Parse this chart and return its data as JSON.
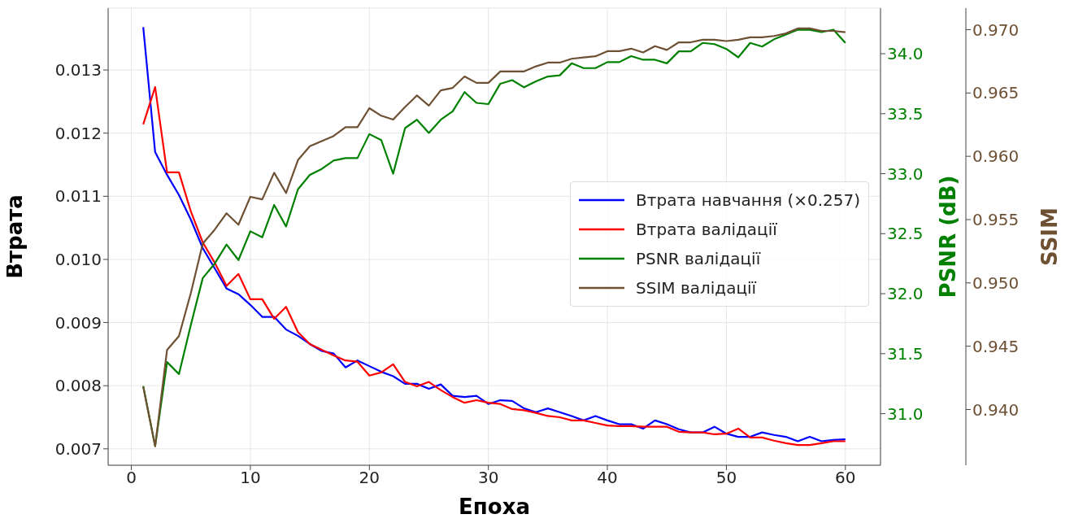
{
  "chart_data": {
    "type": "line",
    "xlabel": "Епоха",
    "ylabel": "Втрата",
    "y2label": "PSNR (dB)",
    "y3label": "SSIM",
    "x": [
      1,
      2,
      3,
      4,
      5,
      6,
      7,
      8,
      9,
      10,
      11,
      12,
      13,
      14,
      15,
      16,
      17,
      18,
      19,
      20,
      21,
      22,
      23,
      24,
      25,
      26,
      27,
      28,
      29,
      30,
      31,
      32,
      33,
      34,
      35,
      36,
      37,
      38,
      39,
      40,
      41,
      42,
      43,
      44,
      45,
      46,
      47,
      48,
      49,
      50,
      51,
      52,
      53,
      54,
      55,
      56,
      57,
      58,
      59,
      60
    ],
    "series": [
      {
        "name": "Втрата навчання (×0.257)",
        "color": "#0000ff",
        "values": [
          0.01368,
          0.0117,
          0.01134,
          0.01102,
          0.01063,
          0.01018,
          0.00986,
          0.00954,
          0.00945,
          0.00928,
          0.00909,
          0.00909,
          0.00889,
          0.00879,
          0.00866,
          0.00855,
          0.00851,
          0.00829,
          0.0084,
          0.00831,
          0.00822,
          0.00815,
          0.00803,
          0.00803,
          0.00795,
          0.00802,
          0.00784,
          0.00782,
          0.00784,
          0.00771,
          0.00777,
          0.00776,
          0.00764,
          0.00758,
          0.00764,
          0.00758,
          0.00752,
          0.00745,
          0.00752,
          0.00745,
          0.00739,
          0.00739,
          0.00732,
          0.00745,
          0.00739,
          0.00731,
          0.00726,
          0.00726,
          0.00735,
          0.00724,
          0.00719,
          0.00719,
          0.00726,
          0.00722,
          0.00719,
          0.00712,
          0.00719,
          0.00712,
          0.00714,
          0.00715
        ]
      },
      {
        "name": "Втрата валідації",
        "color": "#ff0000",
        "values": [
          0.01214,
          0.01273,
          0.01138,
          0.01138,
          0.01076,
          0.01027,
          0.00995,
          0.00958,
          0.00977,
          0.00937,
          0.00937,
          0.00906,
          0.00925,
          0.00885,
          0.00866,
          0.00857,
          0.00848,
          0.0084,
          0.00838,
          0.00816,
          0.00821,
          0.00834,
          0.00806,
          0.00799,
          0.00806,
          0.00793,
          0.00782,
          0.00773,
          0.00777,
          0.00773,
          0.00771,
          0.00763,
          0.00761,
          0.00757,
          0.00752,
          0.0075,
          0.00745,
          0.00745,
          0.00741,
          0.00737,
          0.00736,
          0.00736,
          0.00735,
          0.00735,
          0.00735,
          0.00727,
          0.00726,
          0.00726,
          0.00723,
          0.00724,
          0.00732,
          0.00718,
          0.00718,
          0.00713,
          0.00709,
          0.00706,
          0.00706,
          0.00709,
          0.00712,
          0.00712
        ]
      },
      {
        "name": "PSNR валідації",
        "color": "#008000",
        "axis": "y2",
        "values": [
          31.23,
          30.73,
          31.43,
          31.33,
          31.74,
          32.13,
          32.25,
          32.41,
          32.28,
          32.52,
          32.47,
          32.74,
          32.56,
          32.87,
          32.99,
          33.04,
          33.11,
          33.13,
          33.13,
          33.33,
          33.28,
          33.0,
          33.38,
          33.45,
          33.34,
          33.45,
          33.52,
          33.68,
          33.59,
          33.58,
          33.75,
          33.78,
          33.72,
          33.77,
          33.81,
          33.82,
          33.92,
          33.88,
          33.88,
          33.93,
          33.93,
          33.98,
          33.95,
          33.95,
          33.92,
          34.02,
          34.02,
          34.09,
          34.08,
          34.04,
          33.97,
          34.09,
          34.06,
          34.12,
          34.16,
          34.2,
          34.2,
          34.18,
          34.2,
          34.09
        ]
      },
      {
        "name": "SSIM валідації",
        "color": "#6e5033",
        "axis": "y3",
        "values": [
          0.9418,
          0.9371,
          0.9447,
          0.9458,
          0.9492,
          0.9531,
          0.9542,
          0.9555,
          0.9546,
          0.9568,
          0.9566,
          0.9587,
          0.9571,
          0.9597,
          0.9608,
          0.9612,
          0.9616,
          0.9623,
          0.9623,
          0.9638,
          0.9632,
          0.9629,
          0.9639,
          0.9648,
          0.964,
          0.9652,
          0.9654,
          0.9663,
          0.9658,
          0.9658,
          0.9667,
          0.9667,
          0.9667,
          0.9671,
          0.9674,
          0.9674,
          0.9677,
          0.9678,
          0.9679,
          0.9683,
          0.9683,
          0.9685,
          0.9682,
          0.9687,
          0.9684,
          0.969,
          0.969,
          0.9692,
          0.9692,
          0.9691,
          0.9692,
          0.9694,
          0.9694,
          0.9695,
          0.9697,
          0.9701,
          0.9701,
          0.9699,
          0.9699,
          0.9698
        ]
      }
    ],
    "xlim": [
      -1.95,
      62.95
    ],
    "xticks": [
      0,
      10,
      20,
      30,
      40,
      50,
      60
    ],
    "ylim": [
      0.00674,
      0.01398
    ],
    "yticks": [
      0.007,
      0.008,
      0.009,
      {
        "value": 0.01,
        "label": "0.010"
      },
      0.011,
      0.012,
      0.013
    ],
    "y2lim": [
      30.57,
      34.38
    ],
    "y2ticks": [
      {
        "value": 31,
        "label": "31.0"
      },
      31.5,
      {
        "value": 32,
        "label": "32.0"
      },
      32.5,
      {
        "value": 33,
        "label": "33.0"
      },
      33.5,
      {
        "value": 34,
        "label": "34.0"
      }
    ],
    "y3lim": [
      0.9356,
      0.9717
    ],
    "y3ticks": [
      {
        "value": 0.94,
        "label": "0.940"
      },
      0.945,
      {
        "value": 0.95,
        "label": "0.950"
      },
      0.955,
      {
        "value": 0.96,
        "label": "0.960"
      },
      0.965,
      {
        "value": 0.97,
        "label": "0.970"
      }
    ],
    "grid": true,
    "legend": "right",
    "marker": "none",
    "line_style": "solid"
  }
}
